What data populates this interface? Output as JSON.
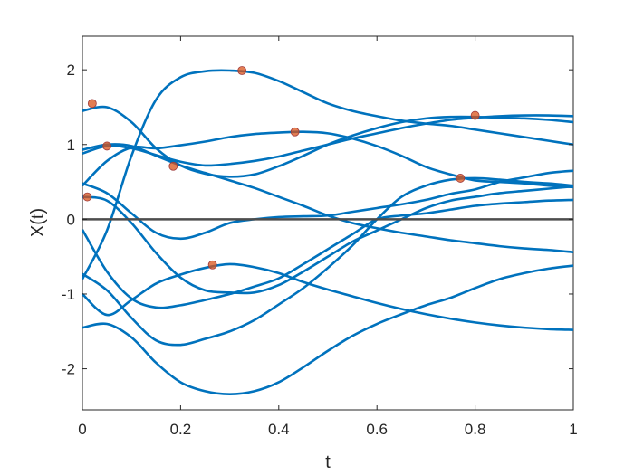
{
  "chart_data": {
    "type": "line",
    "title": "",
    "xlabel": "t",
    "ylabel": "X(t)",
    "xlim": [
      0,
      1
    ],
    "ylim": [
      -2.55,
      2.45
    ],
    "xticks": [
      0,
      0.2,
      0.4,
      0.6,
      0.8,
      1
    ],
    "xtick_labels": [
      "0",
      "0.2",
      "0.4",
      "0.6",
      "0.8",
      "1"
    ],
    "yticks": [
      -2,
      -1,
      0,
      1,
      2
    ],
    "ytick_labels": [
      "-2",
      "-1",
      "0",
      "1",
      "2"
    ],
    "grid": false,
    "legend": "none",
    "series_color": "#0072BD",
    "zero_line_color": "#4D4D4D",
    "marker_color": "#D95319",
    "x": [
      0,
      0.05,
      0.1,
      0.15,
      0.2,
      0.25,
      0.3,
      0.35,
      0.4,
      0.45,
      0.5,
      0.55,
      0.6,
      0.65,
      0.7,
      0.75,
      0.8,
      0.85,
      0.9,
      0.95,
      1.0
    ],
    "series": [
      {
        "values": [
          0.48,
          0.35,
          0.08,
          -0.18,
          -0.26,
          -0.18,
          -0.05,
          0.0,
          0.03,
          0.04,
          0.05,
          0.1,
          0.15,
          0.2,
          0.26,
          0.34,
          0.4,
          0.5,
          0.56,
          0.62,
          0.65
        ]
      },
      {
        "values": [
          1.45,
          1.5,
          1.3,
          0.95,
          0.72,
          0.61,
          0.57,
          0.6,
          0.71,
          0.85,
          1.0,
          1.12,
          1.22,
          1.3,
          1.35,
          1.37,
          1.37,
          1.36,
          1.35,
          1.33,
          1.3
        ]
      },
      {
        "values": [
          0.3,
          0.25,
          -0.05,
          -0.45,
          -0.78,
          -0.95,
          -0.98,
          -0.98,
          -0.88,
          -0.7,
          -0.5,
          -0.3,
          -0.15,
          0.0,
          0.15,
          0.25,
          0.3,
          0.35,
          0.38,
          0.41,
          0.44
        ]
      },
      {
        "values": [
          -0.14,
          -0.7,
          -1.06,
          -1.18,
          -1.15,
          -1.08,
          -1.0,
          -0.9,
          -0.79,
          -0.6,
          -0.4,
          -0.2,
          0.0,
          0.05,
          0.08,
          0.13,
          0.18,
          0.21,
          0.23,
          0.25,
          0.26
        ]
      },
      {
        "values": [
          -0.73,
          -0.95,
          -1.32,
          -1.62,
          -1.68,
          -1.6,
          -1.5,
          -1.35,
          -1.14,
          -0.92,
          -0.65,
          -0.35,
          0.0,
          0.3,
          0.45,
          0.53,
          0.55,
          0.53,
          0.5,
          0.48,
          0.45
        ]
      },
      {
        "values": [
          0.93,
          1.0,
          0.98,
          0.85,
          0.72,
          0.62,
          0.52,
          0.42,
          0.3,
          0.18,
          0.05,
          -0.05,
          -0.12,
          -0.18,
          -0.23,
          -0.28,
          -0.32,
          -0.36,
          -0.39,
          -0.41,
          -0.44
        ]
      },
      {
        "values": [
          -0.8,
          -0.15,
          0.85,
          1.6,
          1.9,
          1.98,
          1.99,
          1.96,
          1.85,
          1.7,
          1.55,
          1.45,
          1.38,
          1.32,
          1.28,
          1.25,
          1.2,
          1.15,
          1.1,
          1.05,
          1.0
        ]
      },
      {
        "values": [
          0.45,
          0.78,
          0.96,
          0.95,
          0.99,
          1.04,
          1.1,
          1.14,
          1.16,
          1.17,
          1.15,
          1.08,
          0.98,
          0.85,
          0.7,
          0.6,
          0.52,
          0.5,
          0.48,
          0.45,
          0.43
        ]
      },
      {
        "values": [
          -1.0,
          -1.28,
          -1.08,
          -0.86,
          -0.74,
          -0.65,
          -0.6,
          -0.64,
          -0.72,
          -0.84,
          -0.94,
          -1.03,
          -1.12,
          -1.2,
          -1.27,
          -1.33,
          -1.38,
          -1.42,
          -1.45,
          -1.47,
          -1.48
        ]
      },
      {
        "values": [
          -1.45,
          -1.4,
          -1.58,
          -1.92,
          -2.18,
          -2.3,
          -2.34,
          -2.3,
          -2.18,
          -1.98,
          -1.76,
          -1.56,
          -1.4,
          -1.27,
          -1.15,
          -1.05,
          -0.92,
          -0.8,
          -0.72,
          -0.66,
          -0.62
        ]
      },
      {
        "values": [
          0.88,
          0.98,
          0.95,
          0.86,
          0.77,
          0.72,
          0.74,
          0.78,
          0.84,
          0.92,
          1.0,
          1.08,
          1.15,
          1.22,
          1.28,
          1.33,
          1.36,
          1.38,
          1.39,
          1.39,
          1.38
        ]
      }
    ],
    "zero_line": {
      "y": 0
    },
    "markers": [
      {
        "x": 0.01,
        "y": 0.3
      },
      {
        "x": 0.02,
        "y": 1.55
      },
      {
        "x": 0.05,
        "y": 0.98
      },
      {
        "x": 0.185,
        "y": 0.71
      },
      {
        "x": 0.265,
        "y": -0.61
      },
      {
        "x": 0.325,
        "y": 1.99
      },
      {
        "x": 0.433,
        "y": 1.17
      },
      {
        "x": 0.77,
        "y": 0.55
      },
      {
        "x": 0.8,
        "y": 1.39
      }
    ]
  }
}
